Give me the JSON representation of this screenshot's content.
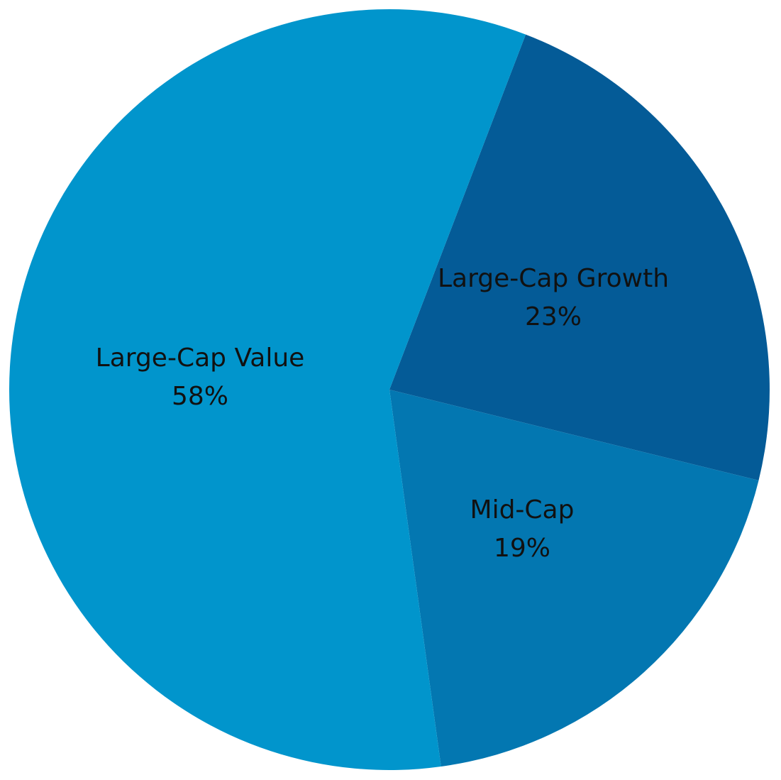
{
  "chart_data": {
    "type": "pie",
    "title": "",
    "slices": [
      {
        "label": "Large-Cap Growth",
        "value": 23,
        "value_label": "23%",
        "color": "#045b97"
      },
      {
        "label": "Mid-Cap",
        "value": 19,
        "value_label": "19%",
        "color": "#0377b1"
      },
      {
        "label": "Large-Cap Value",
        "value": 58,
        "value_label": "58%",
        "color": "#0195cc"
      }
    ],
    "start_angle_deg": -69,
    "direction": "clockwise",
    "legend": "none"
  }
}
